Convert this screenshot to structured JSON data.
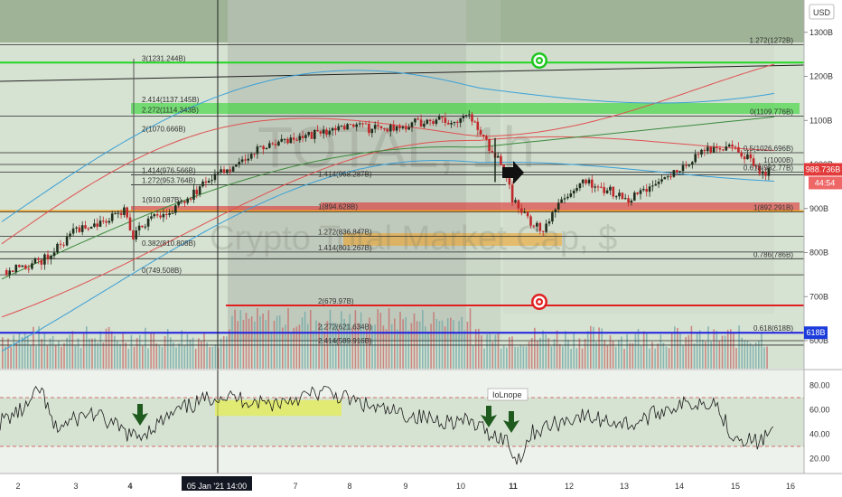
{
  "header": {
    "currency": "USD"
  },
  "watermark": {
    "symbol": "TOTAL, 1h",
    "name": "Crypto Total Market Cap, $"
  },
  "colors": {
    "background": "#d6e2d2",
    "top_band": "#9fb496",
    "shade": "#b8c2b4",
    "candle_up": "#1f2e1c",
    "candle_down": "#c0282a",
    "green_line": "#22d622",
    "red_line": "#e02020",
    "blue_line": "#2020e0",
    "orange_line": "#f2a01e",
    "price_badge": "#e23a3a",
    "level_badge": "#1b3bdb",
    "rsi_highlight": "#e6f04a",
    "arrow": "#1f5a1f"
  },
  "chart_data": {
    "type": "line",
    "x_ticks": [
      "2",
      "3",
      "4",
      "5",
      "6",
      "7",
      "8",
      "9",
      "10",
      "11",
      "12",
      "13",
      "14",
      "15",
      "16"
    ],
    "crosshair_label": "05 Jan '21   14:00",
    "price_axis": {
      "ticks": [
        "1300B",
        "1200B",
        "1100B",
        "1000B",
        "900B",
        "800B",
        "700B",
        "600B"
      ],
      "ylim_billions": [
        520,
        1350
      ]
    },
    "current_price": "988.736B",
    "countdown": "44:54",
    "marked_level": "618B",
    "fib_left": [
      {
        "label": "3(1231.244B)",
        "value": 1231.244
      },
      {
        "label": "2.414(1137.145B)",
        "value": 1137.145
      },
      {
        "label": "2.272(1114.343B)",
        "value": 1114.343
      },
      {
        "label": "2(1070.666B)",
        "value": 1070.666
      },
      {
        "label": "1.414(976.566B)",
        "value": 976.566
      },
      {
        "label": "1.272(953.764B)",
        "value": 953.764
      },
      {
        "label": "1(910.087B)",
        "value": 910.087
      },
      {
        "label": "0.382(810.808B)",
        "value": 810.808
      },
      {
        "label": "0(749.508B)",
        "value": 749.508
      }
    ],
    "fib_middle": [
      {
        "label": "1.414(968.287B)",
        "value": 968.287
      },
      {
        "label": "1(894.628B)",
        "value": 894.628
      },
      {
        "label": "1.272(836.847B)",
        "value": 836.847
      },
      {
        "label": "1.414(801.267B)",
        "value": 801.267
      },
      {
        "label": "2(679.97B)",
        "value": 679.97
      },
      {
        "label": "2.272(621.634B)",
        "value": 621.634
      },
      {
        "label": "2.414(589.916B)",
        "value": 589.916
      }
    ],
    "fib_right": [
      {
        "label": "1.272(1272B)",
        "value": 1272
      },
      {
        "label": "0(1109.776B)",
        "value": 1109.776
      },
      {
        "label": "0.5(1026.696B)",
        "value": 1026.696
      },
      {
        "label": "1(1000B)",
        "value": 1000
      },
      {
        "label": "0.618(982.77B)",
        "value": 982.77
      },
      {
        "label": "1(892.291B)",
        "value": 892.291
      },
      {
        "label": "0.786(786B)",
        "value": 786
      },
      {
        "label": "0.618(618B)",
        "value": 618
      }
    ],
    "rsi": {
      "label": "IoLnope",
      "ticks": [
        "80.00",
        "60.00",
        "40.00",
        "20.00"
      ],
      "ylim": [
        10,
        90
      ],
      "bands": [
        70,
        30
      ]
    }
  }
}
